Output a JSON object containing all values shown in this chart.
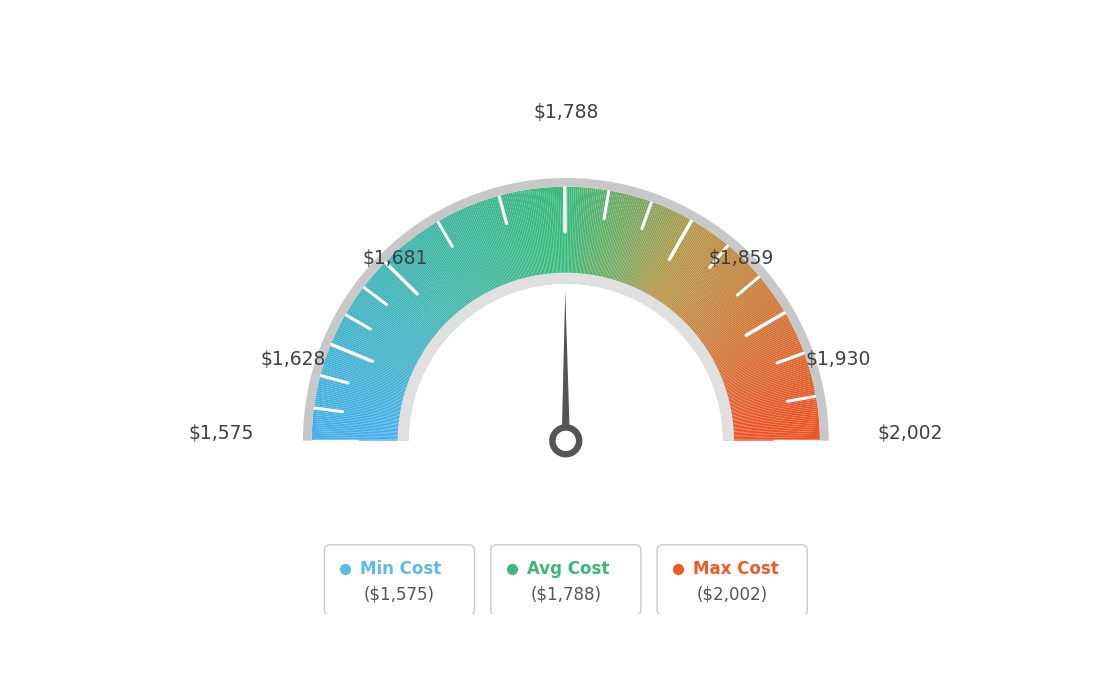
{
  "min_val": 1575,
  "max_val": 2002,
  "avg_val": 1788,
  "tick_values": [
    1575,
    1628,
    1681,
    1788,
    1859,
    1930,
    2002
  ],
  "tick_labels": [
    "$1,575",
    "$1,628",
    "$1,681",
    "$1,788",
    "$1,859",
    "$1,930",
    "$2,002"
  ],
  "legend": [
    {
      "label": "Min Cost",
      "value": "($1,575)",
      "color": "#5bbde4"
    },
    {
      "label": "Avg Cost",
      "value": "($1,788)",
      "color": "#3db878"
    },
    {
      "label": "Max Cost",
      "value": "($2,002)",
      "color": "#f05a22"
    }
  ],
  "colors": {
    "blue": [
      70,
      175,
      235
    ],
    "green": [
      55,
      185,
      120
    ],
    "olive": [
      180,
      150,
      70
    ],
    "orange_red": [
      238,
      80,
      35
    ]
  },
  "background": "#ffffff",
  "outer_r": 1.1,
  "inner_r": 0.68,
  "needle_color": "#555555",
  "border_gray": "#c8c8c8",
  "inner_track_color": "#e0e0e0"
}
